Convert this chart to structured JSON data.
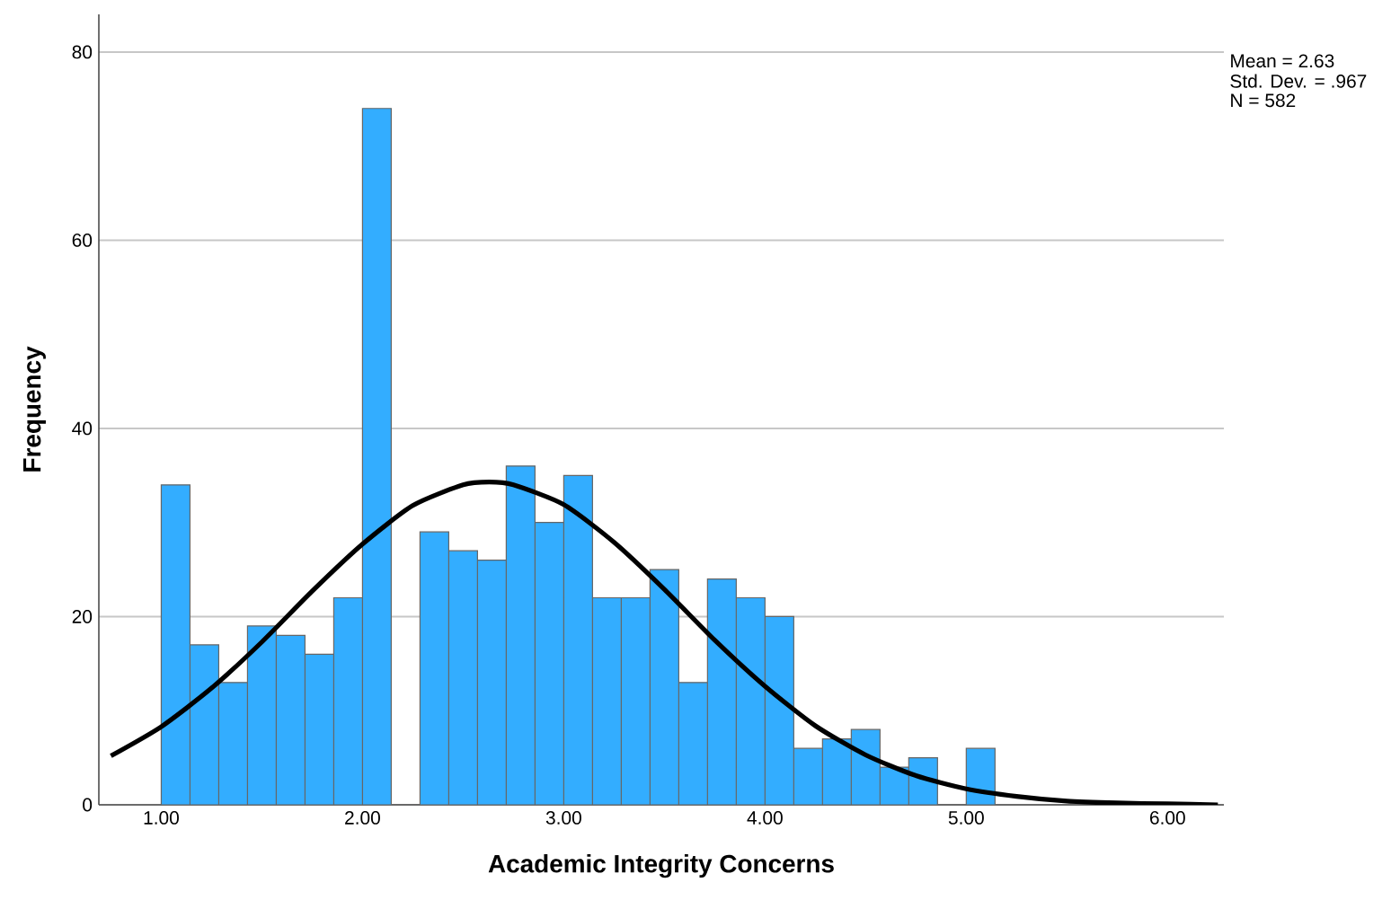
{
  "chart_data": {
    "type": "histogram",
    "xlabel": "Academic Integrity Concerns",
    "ylabel": "Frequency",
    "annotations": [
      "Mean = 2.63",
      "Std. Dev. = .967",
      "N = 582"
    ],
    "series": [
      {
        "color": "#33adff",
        "bins": [
          1.0,
          1.142857,
          1.285714,
          1.428571,
          1.571429,
          1.714286,
          1.857143,
          2.0,
          2.142857,
          2.285714,
          2.428571,
          2.571429,
          2.714286,
          2.857143,
          3.0,
          3.142857,
          3.285714,
          3.428571,
          3.571429,
          3.714286,
          3.857143,
          4.0,
          4.142857,
          4.285714,
          4.428571,
          4.571429,
          4.714286,
          4.857143,
          5.0,
          5.142857
        ],
        "values": [
          34,
          17,
          13,
          19,
          18,
          16,
          22,
          74,
          0,
          29,
          27,
          26,
          36,
          30,
          35,
          22,
          22,
          25,
          13,
          24,
          22,
          20,
          6,
          7,
          8,
          4,
          5,
          0,
          6
        ]
      },
      {
        "type": "line",
        "color": "#000000",
        "x": [
          0.75,
          1.0,
          1.25,
          1.5,
          1.75,
          2.0,
          2.25,
          2.5,
          2.63,
          2.75,
          3.0,
          3.25,
          3.5,
          3.75,
          4.0,
          4.25,
          4.5,
          4.75,
          5.0,
          5.25,
          5.5,
          5.75,
          6.0,
          6.25
        ],
        "values": [
          5.2,
          8.3,
          12.4,
          17.3,
          22.7,
          27.7,
          31.8,
          34.0,
          34.3,
          34.0,
          31.9,
          27.9,
          22.9,
          17.5,
          12.6,
          8.4,
          5.3,
          3.1,
          1.7,
          0.9,
          0.4,
          0.2,
          0.1,
          0.0
        ]
      }
    ],
    "xlim": [
      0.69,
      6.28
    ],
    "ylim": [
      0,
      84
    ],
    "xticks": [
      {
        "value": 1,
        "label": "1.00"
      },
      {
        "value": 2,
        "label": "2.00"
      },
      {
        "value": 3,
        "label": "3.00"
      },
      {
        "value": 4,
        "label": "4.00"
      },
      {
        "value": 5,
        "label": "5.00"
      },
      {
        "value": 6,
        "label": "6.00"
      }
    ],
    "yticks": [
      0,
      20,
      40,
      60,
      80
    ],
    "grid": "y"
  }
}
